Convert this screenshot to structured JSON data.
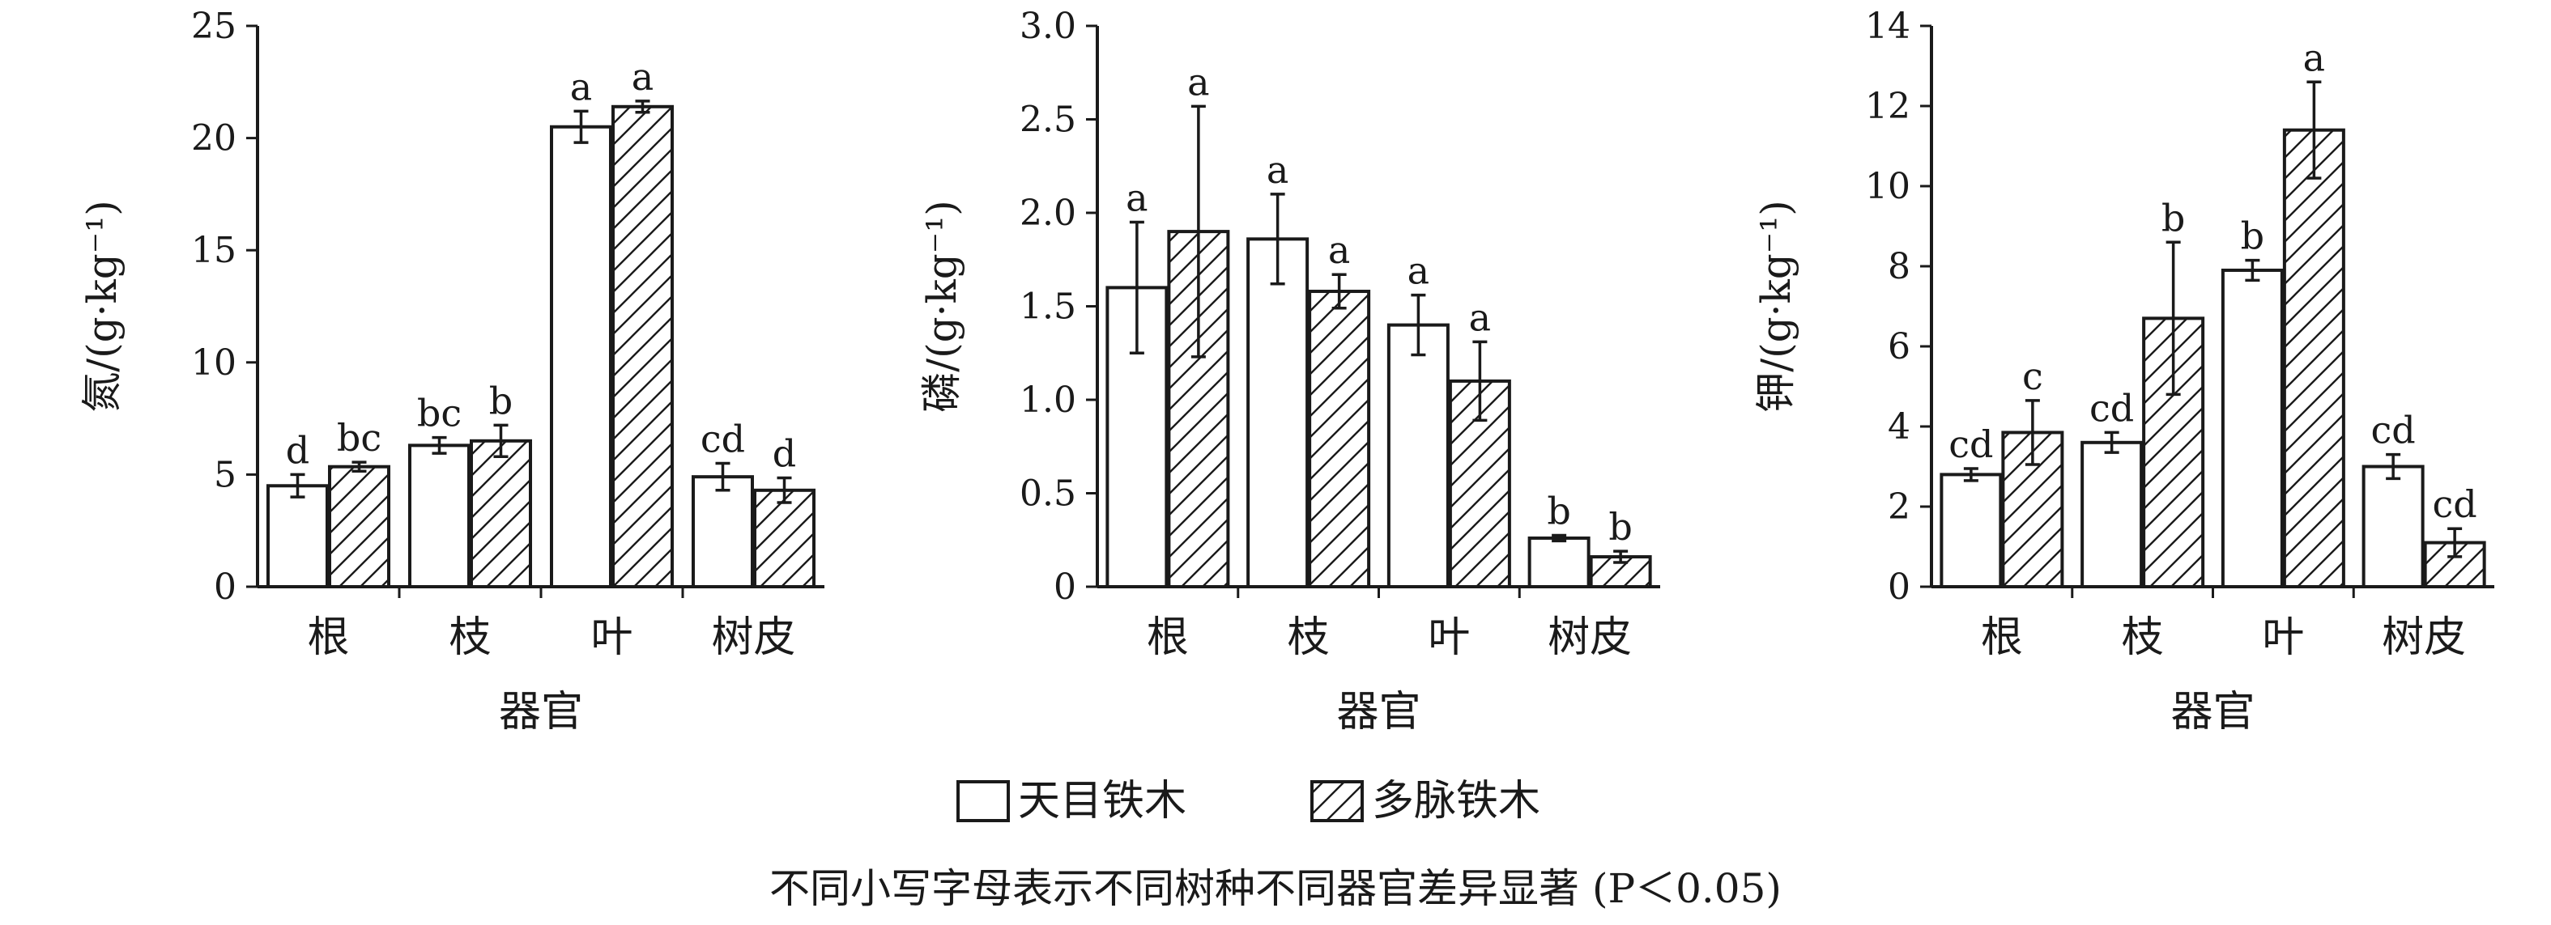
{
  "legend": {
    "series_a": "天目铁木",
    "series_b": "多脉铁木"
  },
  "note": "不同小写字母表示不同树种不同器官差异显著 (P＜0.05)",
  "chart_data": [
    {
      "type": "bar",
      "categories": [
        "根",
        "枝",
        "叶",
        "树皮"
      ],
      "xlabel": "器官",
      "ylabel": "氮/(g·kg⁻¹)",
      "ylim": [
        0,
        25
      ],
      "yticks": [
        0,
        5,
        10,
        15,
        20,
        25
      ],
      "ytick_labels": [
        "0",
        "5",
        "10",
        "15",
        "20",
        "25"
      ],
      "series": [
        {
          "name": "天目铁木",
          "values": [
            4.5,
            6.3,
            20.5,
            4.9
          ],
          "errors": [
            0.5,
            0.35,
            0.7,
            0.6
          ],
          "labels": [
            "d",
            "bc",
            "a",
            "cd"
          ]
        },
        {
          "name": "多脉铁木",
          "values": [
            5.35,
            6.5,
            21.4,
            4.3
          ],
          "errors": [
            0.2,
            0.7,
            0.25,
            0.55
          ],
          "labels": [
            "bc",
            "b",
            "a",
            "d"
          ]
        }
      ]
    },
    {
      "type": "bar",
      "categories": [
        "根",
        "枝",
        "叶",
        "树皮"
      ],
      "xlabel": "器官",
      "ylabel": "磷/(g·kg⁻¹)",
      "ylim": [
        0,
        3.0
      ],
      "yticks": [
        0,
        0.5,
        1.0,
        1.5,
        2.0,
        2.5,
        3.0
      ],
      "ytick_labels": [
        "0",
        "0.5",
        "1.0",
        "1.5",
        "2.0",
        "2.5",
        "3.0"
      ],
      "series": [
        {
          "name": "天目铁木",
          "values": [
            1.6,
            1.86,
            1.4,
            0.26
          ],
          "errors": [
            0.35,
            0.24,
            0.16,
            0.015
          ],
          "labels": [
            "a",
            "a",
            "a",
            "b"
          ]
        },
        {
          "name": "多脉铁木",
          "values": [
            1.9,
            1.58,
            1.1,
            0.16
          ],
          "errors": [
            0.67,
            0.09,
            0.21,
            0.03
          ],
          "labels": [
            "a",
            "a",
            "a",
            "b"
          ]
        }
      ]
    },
    {
      "type": "bar",
      "categories": [
        "根",
        "枝",
        "叶",
        "树皮"
      ],
      "xlabel": "器官",
      "ylabel": "钾/(g·kg⁻¹)",
      "ylim": [
        0,
        14
      ],
      "yticks": [
        0,
        2,
        4,
        6,
        8,
        10,
        12,
        14
      ],
      "ytick_labels": [
        "0",
        "2",
        "4",
        "6",
        "8",
        "10",
        "12",
        "14"
      ],
      "series": [
        {
          "name": "天目铁木",
          "values": [
            2.8,
            3.6,
            7.9,
            3.0
          ],
          "errors": [
            0.15,
            0.25,
            0.25,
            0.3
          ],
          "labels": [
            "cd",
            "cd",
            "b",
            "cd"
          ]
        },
        {
          "name": "多脉铁木",
          "values": [
            3.85,
            6.7,
            11.4,
            1.1
          ],
          "errors": [
            0.8,
            1.9,
            1.2,
            0.35
          ],
          "labels": [
            "c",
            "b",
            "a",
            "cd"
          ]
        }
      ]
    }
  ]
}
